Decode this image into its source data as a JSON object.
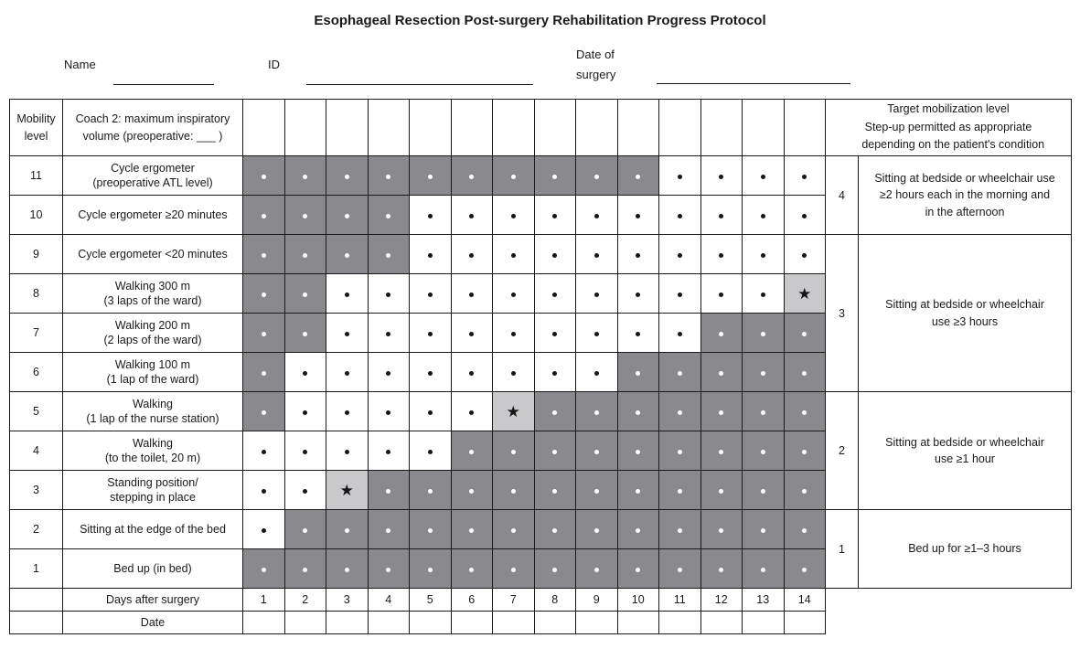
{
  "title": "Esophageal Resection Post-surgery Rehabilitation Progress Protocol",
  "form": {
    "name_label": "Name",
    "id_label": "ID",
    "date_label_lines": [
      "Date of",
      "surgery"
    ]
  },
  "colors": {
    "shaded_cell": "#8a8a8e",
    "star_cell": "#c9c8ca",
    "border": "#1a1a1a"
  },
  "cell_codes": {
    "g": "shaded-gray-with-white-dot",
    "b": "white-with-black-dot",
    "s": "light-gray-with-black-star"
  },
  "table": {
    "mobility_header_lines": [
      "Mobility",
      "level"
    ],
    "coach_header_lines": [
      "Coach 2: maximum inspiratory",
      "volume (preoperative: ___ )"
    ],
    "target_header_lines": [
      "Target mobilization level",
      "Step-up permitted as appropriate",
      "   depending on the patient's condition"
    ],
    "days_label": "Days after surgery",
    "date_label": "Date",
    "days": [
      "1",
      "2",
      "3",
      "4",
      "5",
      "6",
      "7",
      "8",
      "9",
      "10",
      "11",
      "12",
      "13",
      "14"
    ],
    "rows": [
      {
        "level": "11",
        "activity": [
          "Cycle ergometer",
          "(preoperative ATL level)"
        ],
        "cells": [
          "g",
          "g",
          "g",
          "g",
          "g",
          "g",
          "g",
          "g",
          "g",
          "g",
          "b",
          "b",
          "b",
          "b"
        ]
      },
      {
        "level": "10",
        "activity": [
          "Cycle ergometer ≥20 minutes"
        ],
        "cells": [
          "g",
          "g",
          "g",
          "g",
          "b",
          "b",
          "b",
          "b",
          "b",
          "b",
          "b",
          "b",
          "b",
          "b"
        ]
      },
      {
        "level": "9",
        "activity": [
          "Cycle ergometer <20 minutes"
        ],
        "cells": [
          "g",
          "g",
          "g",
          "g",
          "b",
          "b",
          "b",
          "b",
          "b",
          "b",
          "b",
          "b",
          "b",
          "b"
        ]
      },
      {
        "level": "8",
        "activity": [
          "Walking 300 m",
          "(3 laps of the ward)"
        ],
        "cells": [
          "g",
          "g",
          "b",
          "b",
          "b",
          "b",
          "b",
          "b",
          "b",
          "b",
          "b",
          "b",
          "b",
          "s"
        ]
      },
      {
        "level": "7",
        "activity": [
          "Walking 200 m",
          "(2 laps of the ward)"
        ],
        "cells": [
          "g",
          "g",
          "b",
          "b",
          "b",
          "b",
          "b",
          "b",
          "b",
          "b",
          "b",
          "g",
          "g",
          "g"
        ]
      },
      {
        "level": "6",
        "activity": [
          "Walking 100 m",
          "(1 lap of the ward)"
        ],
        "cells": [
          "g",
          "b",
          "b",
          "b",
          "b",
          "b",
          "b",
          "b",
          "b",
          "g",
          "g",
          "g",
          "g",
          "g"
        ]
      },
      {
        "level": "5",
        "activity": [
          "Walking",
          "(1 lap of the nurse station)"
        ],
        "cells": [
          "g",
          "b",
          "b",
          "b",
          "b",
          "b",
          "s",
          "g",
          "g",
          "g",
          "g",
          "g",
          "g",
          "g"
        ]
      },
      {
        "level": "4",
        "activity": [
          "Walking",
          "(to the toilet, 20 m)"
        ],
        "cells": [
          "b",
          "b",
          "b",
          "b",
          "b",
          "g",
          "g",
          "g",
          "g",
          "g",
          "g",
          "g",
          "g",
          "g"
        ]
      },
      {
        "level": "3",
        "activity": [
          "Standing position/",
          "stepping in place"
        ],
        "cells": [
          "b",
          "b",
          "s",
          "g",
          "g",
          "g",
          "g",
          "g",
          "g",
          "g",
          "g",
          "g",
          "g",
          "g"
        ]
      },
      {
        "level": "2",
        "activity": [
          "Sitting at the edge of the bed"
        ],
        "cells": [
          "b",
          "g",
          "g",
          "g",
          "g",
          "g",
          "g",
          "g",
          "g",
          "g",
          "g",
          "g",
          "g",
          "g"
        ]
      },
      {
        "level": "1",
        "activity": [
          "Bed up (in bed)"
        ],
        "cells": [
          "g",
          "g",
          "g",
          "g",
          "g",
          "g",
          "g",
          "g",
          "g",
          "g",
          "g",
          "g",
          "g",
          "g"
        ]
      }
    ],
    "targets": [
      {
        "level": "4",
        "rows": 2,
        "text_lines": [
          "Sitting at bedside or wheelchair use",
          "≥2 hours each in the morning and",
          "in the afternoon"
        ]
      },
      {
        "level": "3",
        "rows": 4,
        "text_lines": [
          "Sitting at bedside or wheelchair",
          "use ≥3 hours"
        ]
      },
      {
        "level": "2",
        "rows": 3,
        "text_lines": [
          "Sitting at bedside or wheelchair",
          "use ≥1 hour"
        ]
      },
      {
        "level": "1",
        "rows": 2,
        "text_lines": [
          "Bed up for ≥1–3 hours"
        ]
      }
    ]
  }
}
